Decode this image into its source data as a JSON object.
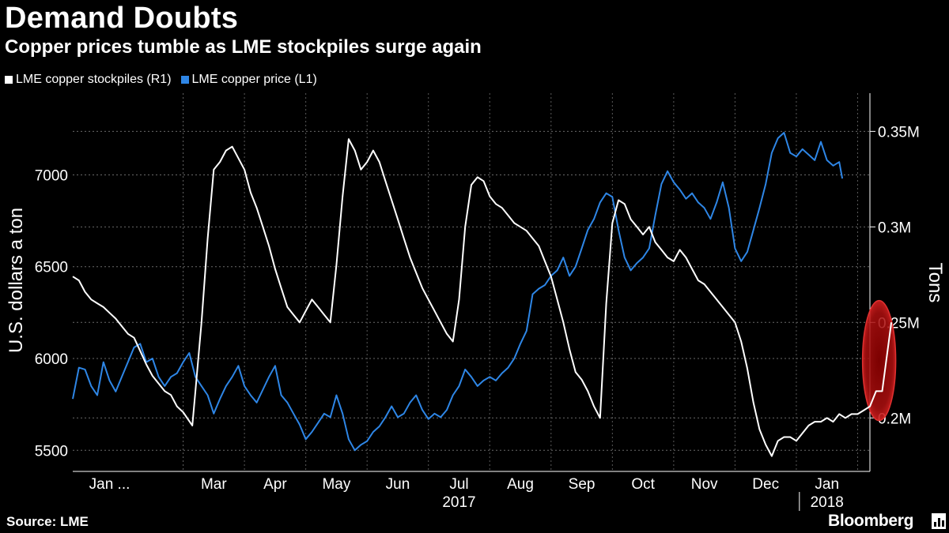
{
  "header": {
    "title": "Demand Doubts",
    "subtitle": "Copper prices tumble as LME stockpiles surge again"
  },
  "footer": {
    "source": "Source: LME",
    "brand": "Bloomberg"
  },
  "colors": {
    "background": "#000000",
    "stockpiles": "#ffffff",
    "price": "#2e86e6",
    "highlight": "#b01010"
  },
  "chart_data": {
    "type": "line",
    "legend": [
      "LME copper stockpiles (R1)",
      "LME copper price (L1)"
    ],
    "legend_placement": "top-left",
    "grid": true,
    "y_left": {
      "label": "U.S. dollars a ton",
      "ticks": [
        5500,
        6000,
        6500,
        7000
      ],
      "range": [
        5385,
        7445
      ]
    },
    "y_right": {
      "label": "Tons",
      "ticks": [
        0.2,
        0.25,
        0.3,
        0.35
      ],
      "tick_labels": [
        "0.2M",
        "0.25M",
        "0.3M",
        "0.35M"
      ],
      "range": [
        0.172,
        0.37
      ]
    },
    "x_axis": {
      "month_labels": [
        "Jan ...",
        "Mar",
        "Apr",
        "May",
        "Jun",
        "Jul",
        "Aug",
        "Sep",
        "Oct",
        "Nov",
        "Dec",
        "Jan"
      ],
      "month_positions": [
        0.6,
        2.3,
        3.3,
        4.3,
        5.3,
        6.3,
        7.3,
        8.3,
        9.3,
        10.3,
        11.3,
        12.3
      ],
      "year_labels": [
        "2017",
        "2018"
      ],
      "year_positions": [
        6.3,
        12.3
      ],
      "range": [
        0,
        13.0
      ]
    },
    "series": [
      {
        "name": "LME copper price (L1)",
        "axis": "left",
        "color": "#2e86e6",
        "points": [
          [
            0.0,
            5780
          ],
          [
            0.1,
            5950
          ],
          [
            0.2,
            5940
          ],
          [
            0.3,
            5850
          ],
          [
            0.4,
            5800
          ],
          [
            0.5,
            5980
          ],
          [
            0.6,
            5880
          ],
          [
            0.7,
            5820
          ],
          [
            0.8,
            5900
          ],
          [
            1.0,
            6060
          ],
          [
            1.1,
            6080
          ],
          [
            1.2,
            5980
          ],
          [
            1.3,
            6000
          ],
          [
            1.4,
            5900
          ],
          [
            1.5,
            5850
          ],
          [
            1.6,
            5900
          ],
          [
            1.7,
            5920
          ],
          [
            1.8,
            5980
          ],
          [
            1.9,
            6030
          ],
          [
            2.0,
            5900
          ],
          [
            2.1,
            5850
          ],
          [
            2.2,
            5800
          ],
          [
            2.3,
            5700
          ],
          [
            2.4,
            5780
          ],
          [
            2.5,
            5850
          ],
          [
            2.6,
            5900
          ],
          [
            2.7,
            5960
          ],
          [
            2.8,
            5850
          ],
          [
            2.9,
            5800
          ],
          [
            3.0,
            5760
          ],
          [
            3.1,
            5830
          ],
          [
            3.2,
            5900
          ],
          [
            3.3,
            5960
          ],
          [
            3.4,
            5800
          ],
          [
            3.5,
            5760
          ],
          [
            3.6,
            5700
          ],
          [
            3.7,
            5640
          ],
          [
            3.8,
            5560
          ],
          [
            3.9,
            5600
          ],
          [
            4.0,
            5650
          ],
          [
            4.1,
            5700
          ],
          [
            4.2,
            5680
          ],
          [
            4.3,
            5800
          ],
          [
            4.4,
            5700
          ],
          [
            4.5,
            5560
          ],
          [
            4.6,
            5500
          ],
          [
            4.7,
            5530
          ],
          [
            4.8,
            5550
          ],
          [
            4.9,
            5600
          ],
          [
            5.0,
            5630
          ],
          [
            5.1,
            5680
          ],
          [
            5.2,
            5740
          ],
          [
            5.3,
            5680
          ],
          [
            5.4,
            5700
          ],
          [
            5.5,
            5760
          ],
          [
            5.6,
            5800
          ],
          [
            5.7,
            5720
          ],
          [
            5.8,
            5670
          ],
          [
            5.9,
            5700
          ],
          [
            6.0,
            5680
          ],
          [
            6.1,
            5720
          ],
          [
            6.2,
            5800
          ],
          [
            6.3,
            5850
          ],
          [
            6.4,
            5940
          ],
          [
            6.5,
            5900
          ],
          [
            6.6,
            5850
          ],
          [
            6.7,
            5880
          ],
          [
            6.8,
            5900
          ],
          [
            6.9,
            5880
          ],
          [
            7.0,
            5920
          ],
          [
            7.1,
            5950
          ],
          [
            7.2,
            6000
          ],
          [
            7.3,
            6080
          ],
          [
            7.4,
            6150
          ],
          [
            7.5,
            6350
          ],
          [
            7.6,
            6380
          ],
          [
            7.7,
            6400
          ],
          [
            7.8,
            6450
          ],
          [
            7.9,
            6480
          ],
          [
            8.0,
            6550
          ],
          [
            8.1,
            6450
          ],
          [
            8.2,
            6500
          ],
          [
            8.3,
            6600
          ],
          [
            8.4,
            6700
          ],
          [
            8.5,
            6760
          ],
          [
            8.6,
            6850
          ],
          [
            8.7,
            6900
          ],
          [
            8.8,
            6880
          ],
          [
            8.9,
            6700
          ],
          [
            9.0,
            6550
          ],
          [
            9.1,
            6480
          ],
          [
            9.2,
            6520
          ],
          [
            9.3,
            6550
          ],
          [
            9.4,
            6600
          ],
          [
            9.5,
            6780
          ],
          [
            9.6,
            6950
          ],
          [
            9.7,
            7020
          ],
          [
            9.8,
            6960
          ],
          [
            9.9,
            6920
          ],
          [
            10.0,
            6870
          ],
          [
            10.1,
            6900
          ],
          [
            10.2,
            6850
          ],
          [
            10.3,
            6820
          ],
          [
            10.4,
            6760
          ],
          [
            10.5,
            6850
          ],
          [
            10.6,
            6960
          ],
          [
            10.7,
            6820
          ],
          [
            10.8,
            6600
          ],
          [
            10.9,
            6530
          ],
          [
            11.0,
            6580
          ],
          [
            11.1,
            6700
          ],
          [
            11.2,
            6820
          ],
          [
            11.3,
            6950
          ],
          [
            11.4,
            7120
          ],
          [
            11.5,
            7200
          ],
          [
            11.6,
            7230
          ],
          [
            11.7,
            7120
          ],
          [
            11.8,
            7100
          ],
          [
            11.9,
            7140
          ],
          [
            12.0,
            7110
          ],
          [
            12.1,
            7080
          ],
          [
            12.2,
            7180
          ],
          [
            12.3,
            7080
          ],
          [
            12.4,
            7050
          ],
          [
            12.5,
            7070
          ],
          [
            12.55,
            6980
          ]
        ]
      },
      {
        "name": "LME copper stockpiles (R1)",
        "axis": "right",
        "color": "#ffffff",
        "points": [
          [
            0.0,
            0.274
          ],
          [
            0.1,
            0.272
          ],
          [
            0.2,
            0.266
          ],
          [
            0.3,
            0.262
          ],
          [
            0.4,
            0.26
          ],
          [
            0.5,
            0.258
          ],
          [
            0.6,
            0.255
          ],
          [
            0.7,
            0.252
          ],
          [
            0.8,
            0.248
          ],
          [
            0.9,
            0.244
          ],
          [
            1.0,
            0.242
          ],
          [
            1.1,
            0.235
          ],
          [
            1.2,
            0.228
          ],
          [
            1.3,
            0.222
          ],
          [
            1.4,
            0.218
          ],
          [
            1.5,
            0.214
          ],
          [
            1.6,
            0.212
          ],
          [
            1.7,
            0.206
          ],
          [
            1.8,
            0.203
          ],
          [
            1.95,
            0.196
          ],
          [
            2.0,
            0.214
          ],
          [
            2.1,
            0.25
          ],
          [
            2.2,
            0.294
          ],
          [
            2.3,
            0.33
          ],
          [
            2.4,
            0.334
          ],
          [
            2.5,
            0.34
          ],
          [
            2.6,
            0.342
          ],
          [
            2.7,
            0.336
          ],
          [
            2.8,
            0.33
          ],
          [
            2.9,
            0.318
          ],
          [
            3.0,
            0.31
          ],
          [
            3.1,
            0.3
          ],
          [
            3.2,
            0.29
          ],
          [
            3.3,
            0.278
          ],
          [
            3.4,
            0.268
          ],
          [
            3.5,
            0.258
          ],
          [
            3.6,
            0.254
          ],
          [
            3.7,
            0.25
          ],
          [
            3.8,
            0.256
          ],
          [
            3.9,
            0.262
          ],
          [
            4.0,
            0.258
          ],
          [
            4.1,
            0.254
          ],
          [
            4.2,
            0.25
          ],
          [
            4.3,
            0.28
          ],
          [
            4.4,
            0.316
          ],
          [
            4.5,
            0.346
          ],
          [
            4.6,
            0.34
          ],
          [
            4.7,
            0.33
          ],
          [
            4.8,
            0.334
          ],
          [
            4.9,
            0.34
          ],
          [
            5.0,
            0.334
          ],
          [
            5.1,
            0.324
          ],
          [
            5.2,
            0.314
          ],
          [
            5.3,
            0.304
          ],
          [
            5.4,
            0.294
          ],
          [
            5.5,
            0.284
          ],
          [
            5.6,
            0.276
          ],
          [
            5.7,
            0.268
          ],
          [
            5.8,
            0.262
          ],
          [
            5.9,
            0.256
          ],
          [
            6.0,
            0.25
          ],
          [
            6.1,
            0.244
          ],
          [
            6.2,
            0.24
          ],
          [
            6.3,
            0.262
          ],
          [
            6.4,
            0.3
          ],
          [
            6.5,
            0.322
          ],
          [
            6.6,
            0.326
          ],
          [
            6.7,
            0.324
          ],
          [
            6.8,
            0.316
          ],
          [
            6.9,
            0.312
          ],
          [
            7.0,
            0.31
          ],
          [
            7.1,
            0.306
          ],
          [
            7.2,
            0.302
          ],
          [
            7.3,
            0.3
          ],
          [
            7.4,
            0.298
          ],
          [
            7.5,
            0.294
          ],
          [
            7.6,
            0.29
          ],
          [
            7.7,
            0.282
          ],
          [
            7.8,
            0.274
          ],
          [
            7.9,
            0.262
          ],
          [
            8.0,
            0.25
          ],
          [
            8.1,
            0.236
          ],
          [
            8.2,
            0.224
          ],
          [
            8.3,
            0.22
          ],
          [
            8.4,
            0.214
          ],
          [
            8.5,
            0.206
          ],
          [
            8.6,
            0.2
          ],
          [
            8.7,
            0.26
          ],
          [
            8.8,
            0.302
          ],
          [
            8.9,
            0.314
          ],
          [
            9.0,
            0.312
          ],
          [
            9.1,
            0.304
          ],
          [
            9.2,
            0.3
          ],
          [
            9.3,
            0.296
          ],
          [
            9.4,
            0.3
          ],
          [
            9.5,
            0.292
          ],
          [
            9.6,
            0.288
          ],
          [
            9.7,
            0.284
          ],
          [
            9.8,
            0.282
          ],
          [
            9.9,
            0.288
          ],
          [
            10.0,
            0.284
          ],
          [
            10.1,
            0.278
          ],
          [
            10.2,
            0.272
          ],
          [
            10.3,
            0.27
          ],
          [
            10.4,
            0.266
          ],
          [
            10.5,
            0.262
          ],
          [
            10.6,
            0.258
          ],
          [
            10.7,
            0.254
          ],
          [
            10.8,
            0.25
          ],
          [
            10.9,
            0.24
          ],
          [
            11.0,
            0.226
          ],
          [
            11.1,
            0.208
          ],
          [
            11.2,
            0.194
          ],
          [
            11.3,
            0.186
          ],
          [
            11.4,
            0.18
          ],
          [
            11.5,
            0.188
          ],
          [
            11.6,
            0.19
          ],
          [
            11.7,
            0.19
          ],
          [
            11.8,
            0.188
          ],
          [
            11.9,
            0.192
          ],
          [
            12.0,
            0.196
          ],
          [
            12.1,
            0.198
          ],
          [
            12.2,
            0.198
          ],
          [
            12.3,
            0.2
          ],
          [
            12.4,
            0.198
          ],
          [
            12.5,
            0.202
          ],
          [
            12.6,
            0.2
          ],
          [
            12.7,
            0.202
          ],
          [
            12.8,
            0.202
          ],
          [
            12.9,
            0.204
          ],
          [
            13.0,
            0.206
          ],
          [
            13.1,
            0.214
          ],
          [
            13.2,
            0.214
          ],
          [
            13.35,
            0.25
          ]
        ]
      }
    ],
    "annotation": {
      "type": "ellipse-highlight",
      "note": "latest stockpile surge",
      "center_x": 13.15,
      "center_value": 0.23
    }
  }
}
